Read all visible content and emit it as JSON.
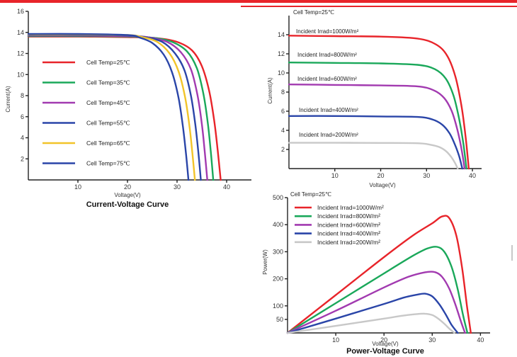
{
  "colors": {
    "band": "#e8242a",
    "red": "#e8242a",
    "green": "#1aa85a",
    "purple": "#a23ab0",
    "blue": "#2a45a8",
    "yellow": "#f2c42a",
    "gray": "#c8c8c8"
  },
  "chart_data": [
    {
      "type": "line",
      "title": "Current-Voltage Curve",
      "xlabel": "Voltage(V)",
      "ylabel": "Current(A)",
      "xlim": [
        0,
        45
      ],
      "ylim": [
        0,
        16
      ],
      "xticks": [
        10,
        20,
        30,
        40
      ],
      "yticks": [
        2,
        4,
        6,
        8,
        10,
        12,
        14,
        16
      ],
      "legend_position": "left",
      "series": [
        {
          "name": "Cell Temp=25℃",
          "color_key": "red",
          "x": [
            0,
            10,
            20,
            26,
            30,
            33,
            35,
            36.5,
            37.5,
            38.2,
            38.8
          ],
          "y": [
            13.6,
            13.6,
            13.55,
            13.45,
            13.1,
            12.3,
            10.8,
            8.4,
            5.6,
            2.8,
            0
          ]
        },
        {
          "name": "Cell Temp=35℃",
          "color_key": "green",
          "x": [
            0,
            10,
            20,
            25,
            29,
            32,
            34,
            35.3,
            36.2,
            36.8,
            37.3
          ],
          "y": [
            13.65,
            13.65,
            13.6,
            13.5,
            13.1,
            12.2,
            10.6,
            8.2,
            5.4,
            2.7,
            0
          ]
        },
        {
          "name": "Cell Temp=45℃",
          "color_key": "purple",
          "x": [
            0,
            10,
            20,
            24,
            28,
            30.8,
            32.8,
            34.1,
            35,
            35.6,
            36.1
          ],
          "y": [
            13.7,
            13.7,
            13.65,
            13.55,
            13.1,
            12.1,
            10.5,
            8.1,
            5.3,
            2.6,
            0
          ]
        },
        {
          "name": "Cell Temp=55℃",
          "color_key": "blue",
          "x": [
            0,
            10,
            20,
            23.5,
            27,
            29.6,
            31.5,
            32.8,
            33.7,
            34.3,
            34.8
          ],
          "y": [
            13.75,
            13.75,
            13.7,
            13.55,
            13.1,
            12.0,
            10.4,
            8.0,
            5.2,
            2.6,
            0
          ]
        },
        {
          "name": "Cell Temp=65℃",
          "color_key": "yellow",
          "x": [
            0,
            10,
            20,
            23,
            26,
            28.5,
            30.3,
            31.6,
            32.5,
            33.1,
            33.6
          ],
          "y": [
            13.8,
            13.8,
            13.75,
            13.55,
            13.1,
            12.0,
            10.3,
            7.9,
            5.1,
            2.5,
            0
          ]
        },
        {
          "name": "Cell Temp=75℃",
          "color_key": "blue",
          "x": [
            0,
            10,
            20,
            22.5,
            25,
            27.3,
            29,
            30.3,
            31.2,
            31.8,
            32.3
          ],
          "y": [
            13.85,
            13.85,
            13.75,
            13.5,
            13.0,
            11.9,
            10.2,
            7.8,
            5.0,
            2.5,
            0
          ]
        }
      ]
    },
    {
      "type": "line",
      "annotation": "Cell Temp=25℃",
      "xlabel": "Voltage(V)",
      "ylabel": "Current(A)",
      "xlim": [
        0,
        42
      ],
      "ylim": [
        0,
        16
      ],
      "xticks": [
        10,
        20,
        30,
        40
      ],
      "yticks": [
        2,
        4,
        6,
        8,
        10,
        12,
        14
      ],
      "series": [
        {
          "name": "Incident Irrad=1000W/m²",
          "color_key": "red",
          "x": [
            0,
            10,
            20,
            28,
            32,
            34.5,
            36.3,
            37.6,
            38.5,
            39.2
          ],
          "y": [
            13.9,
            13.85,
            13.8,
            13.6,
            13.0,
            11.8,
            9.6,
            6.6,
            3.4,
            0
          ]
        },
        {
          "name": "Incident Irrad=800W/m²",
          "color_key": "green",
          "x": [
            0,
            10,
            20,
            28,
            31.8,
            34.2,
            35.9,
            37.1,
            38,
            38.7
          ],
          "y": [
            11.1,
            11.05,
            11.0,
            10.85,
            10.4,
            9.4,
            7.6,
            5.2,
            2.7,
            0
          ]
        },
        {
          "name": "Incident Irrad=600W/m²",
          "color_key": "purple",
          "x": [
            0,
            10,
            20,
            28,
            31.5,
            33.8,
            35.5,
            36.7,
            37.6,
            38.3
          ],
          "y": [
            8.8,
            8.75,
            8.7,
            8.6,
            8.2,
            7.4,
            6.0,
            4.1,
            2.1,
            0
          ]
        },
        {
          "name": "Incident Irrad=400W/m²",
          "color_key": "blue",
          "x": [
            0,
            10,
            20,
            28,
            31.2,
            33.4,
            35,
            36.2,
            37.1,
            37.8
          ],
          "y": [
            5.5,
            5.5,
            5.45,
            5.4,
            5.15,
            4.6,
            3.7,
            2.5,
            1.3,
            0
          ]
        },
        {
          "name": "Incident Irrad=200W/m²",
          "color_key": "gray",
          "x": [
            0,
            10,
            20,
            28,
            30.8,
            32.8,
            34.3,
            35.4,
            36.2,
            36.8
          ],
          "y": [
            2.7,
            2.7,
            2.68,
            2.65,
            2.5,
            2.25,
            1.8,
            1.2,
            0.6,
            0
          ]
        }
      ]
    },
    {
      "type": "line",
      "title": "Power-Voltage Curve",
      "annotation": "Cell Temp=25℃",
      "xlabel": "Voltage(V)",
      "ylabel": "Power(W)",
      "xlim": [
        0,
        42
      ],
      "ylim": [
        0,
        500
      ],
      "xticks": [
        10,
        20,
        30,
        40
      ],
      "yticks": [
        50,
        100,
        200,
        300,
        400,
        500
      ],
      "legend_position": "top-left",
      "series": [
        {
          "name": "Incident Irrad=1000W/m²",
          "color_key": "red",
          "x": [
            0,
            10,
            20,
            26,
            30,
            32,
            33.5,
            35,
            36.2,
            37.2,
            38
          ],
          "y": [
            0,
            140,
            280,
            360,
            405,
            430,
            425,
            360,
            240,
            100,
            0
          ]
        },
        {
          "name": "Incident Irrad=800W/m²",
          "color_key": "green",
          "x": [
            0,
            10,
            20,
            26,
            29,
            31,
            32.5,
            34,
            35.3,
            36.4,
            37.3
          ],
          "y": [
            0,
            110,
            220,
            285,
            312,
            318,
            300,
            245,
            160,
            65,
            0
          ]
        },
        {
          "name": "Incident Irrad=600W/m²",
          "color_key": "purple",
          "x": [
            0,
            10,
            20,
            25,
            28.5,
            30.5,
            32,
            33.5,
            34.8,
            35.9,
            36.8
          ],
          "y": [
            0,
            82,
            168,
            207,
            224,
            225,
            208,
            165,
            105,
            45,
            0
          ]
        },
        {
          "name": "Incident Irrad=400W/m²",
          "color_key": "blue",
          "x": [
            0,
            10,
            20,
            24,
            27,
            28.5,
            30,
            31.5,
            32.8,
            34,
            35.3
          ],
          "y": [
            0,
            53,
            107,
            130,
            142,
            145,
            135,
            105,
            68,
            30,
            0
          ]
        },
        {
          "name": "Incident Irrad=200W/m²",
          "color_key": "gray",
          "x": [
            0,
            10,
            20,
            24,
            27,
            28.5,
            30,
            31.3,
            32.5,
            33.6,
            34.6
          ],
          "y": [
            0,
            26,
            53,
            64,
            70,
            71,
            66,
            52,
            34,
            15,
            0
          ]
        }
      ]
    }
  ]
}
